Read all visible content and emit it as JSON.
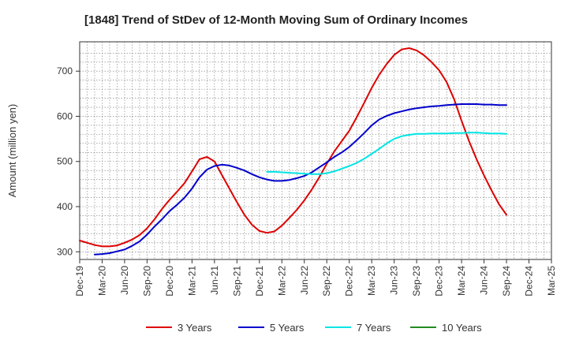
{
  "chart_data": {
    "type": "line",
    "title": "[1848]  Trend of StDev of 12-Month Moving Sum of Ordinary Incomes",
    "xlabel": "",
    "ylabel": "Amount (million yen)",
    "ylim": [
      283,
      765
    ],
    "yticks": [
      300,
      400,
      500,
      600,
      700
    ],
    "x_ticks": [
      "Dec-19",
      "Mar-20",
      "Jun-20",
      "Sep-20",
      "Dec-20",
      "Mar-21",
      "Jun-21",
      "Sep-21",
      "Dec-21",
      "Mar-22",
      "Jun-22",
      "Sep-22",
      "Dec-22",
      "Mar-23",
      "Jun-23",
      "Sep-23",
      "Dec-23",
      "Mar-24",
      "Jun-24",
      "Sep-24",
      "Dec-24",
      "Mar-25"
    ],
    "grid": true,
    "legend_position": "bottom",
    "series": [
      {
        "name": "3 Years",
        "color": "#dd0000",
        "values": [
          [
            0,
            325
          ],
          [
            1,
            320
          ],
          [
            2,
            315
          ],
          [
            3,
            312
          ],
          [
            4,
            312
          ],
          [
            5,
            314
          ],
          [
            6,
            320
          ],
          [
            7,
            327
          ],
          [
            8,
            337
          ],
          [
            9,
            352
          ],
          [
            10,
            372
          ],
          [
            11,
            395
          ],
          [
            12,
            415
          ],
          [
            13,
            433
          ],
          [
            14,
            452
          ],
          [
            15,
            478
          ],
          [
            16,
            505
          ],
          [
            17,
            510
          ],
          [
            18,
            500
          ],
          [
            19,
            470
          ],
          [
            20,
            440
          ],
          [
            21,
            410
          ],
          [
            22,
            382
          ],
          [
            23,
            360
          ],
          [
            24,
            346
          ],
          [
            25,
            342
          ],
          [
            26,
            345
          ],
          [
            27,
            358
          ],
          [
            28,
            375
          ],
          [
            29,
            393
          ],
          [
            30,
            414
          ],
          [
            31,
            438
          ],
          [
            32,
            465
          ],
          [
            33,
            495
          ],
          [
            34,
            522
          ],
          [
            35,
            545
          ],
          [
            36,
            568
          ],
          [
            37,
            598
          ],
          [
            38,
            630
          ],
          [
            39,
            663
          ],
          [
            40,
            692
          ],
          [
            41,
            716
          ],
          [
            42,
            736
          ],
          [
            43,
            748
          ],
          [
            44,
            751
          ],
          [
            45,
            746
          ],
          [
            46,
            735
          ],
          [
            47,
            720
          ],
          [
            48,
            702
          ],
          [
            49,
            676
          ],
          [
            50,
            638
          ],
          [
            51,
            590
          ],
          [
            52,
            545
          ],
          [
            53,
            505
          ],
          [
            54,
            469
          ],
          [
            55,
            436
          ],
          [
            56,
            405
          ],
          [
            57,
            382
          ]
        ]
      },
      {
        "name": "5 Years",
        "color": "#0000cc",
        "values": [
          [
            2,
            294
          ],
          [
            3,
            295
          ],
          [
            4,
            297
          ],
          [
            5,
            301
          ],
          [
            6,
            305
          ],
          [
            7,
            313
          ],
          [
            8,
            323
          ],
          [
            9,
            338
          ],
          [
            10,
            356
          ],
          [
            11,
            372
          ],
          [
            12,
            390
          ],
          [
            13,
            404
          ],
          [
            14,
            420
          ],
          [
            15,
            440
          ],
          [
            16,
            465
          ],
          [
            17,
            482
          ],
          [
            18,
            490
          ],
          [
            19,
            493
          ],
          [
            20,
            491
          ],
          [
            21,
            486
          ],
          [
            22,
            480
          ],
          [
            23,
            472
          ],
          [
            24,
            465
          ],
          [
            25,
            460
          ],
          [
            26,
            457
          ],
          [
            27,
            457
          ],
          [
            28,
            459
          ],
          [
            29,
            463
          ],
          [
            30,
            468
          ],
          [
            31,
            476
          ],
          [
            32,
            487
          ],
          [
            33,
            498
          ],
          [
            34,
            510
          ],
          [
            35,
            520
          ],
          [
            36,
            532
          ],
          [
            37,
            547
          ],
          [
            38,
            563
          ],
          [
            39,
            580
          ],
          [
            40,
            593
          ],
          [
            41,
            601
          ],
          [
            42,
            607
          ],
          [
            43,
            611
          ],
          [
            44,
            615
          ],
          [
            45,
            618
          ],
          [
            46,
            620
          ],
          [
            47,
            622
          ],
          [
            48,
            623
          ],
          [
            49,
            625
          ],
          [
            50,
            626
          ],
          [
            51,
            627
          ],
          [
            52,
            627
          ],
          [
            53,
            627
          ],
          [
            54,
            626
          ],
          [
            55,
            626
          ],
          [
            56,
            625
          ],
          [
            57,
            625
          ]
        ]
      },
      {
        "name": "7 Years",
        "color": "#00e5e5",
        "values": [
          [
            25,
            477
          ],
          [
            26,
            477
          ],
          [
            27,
            476
          ],
          [
            28,
            475
          ],
          [
            29,
            474
          ],
          [
            30,
            473
          ],
          [
            31,
            472
          ],
          [
            32,
            472
          ],
          [
            33,
            474
          ],
          [
            34,
            478
          ],
          [
            35,
            484
          ],
          [
            36,
            490
          ],
          [
            37,
            497
          ],
          [
            38,
            506
          ],
          [
            39,
            517
          ],
          [
            40,
            528
          ],
          [
            41,
            540
          ],
          [
            42,
            550
          ],
          [
            43,
            556
          ],
          [
            44,
            559
          ],
          [
            45,
            561
          ],
          [
            46,
            561
          ],
          [
            47,
            562
          ],
          [
            48,
            562
          ],
          [
            49,
            562
          ],
          [
            50,
            563
          ],
          [
            51,
            563
          ],
          [
            52,
            564
          ],
          [
            53,
            564
          ],
          [
            54,
            563
          ],
          [
            55,
            562
          ],
          [
            56,
            562
          ],
          [
            57,
            561
          ]
        ]
      },
      {
        "name": "10 Years",
        "color": "#228b22",
        "values": []
      }
    ]
  }
}
